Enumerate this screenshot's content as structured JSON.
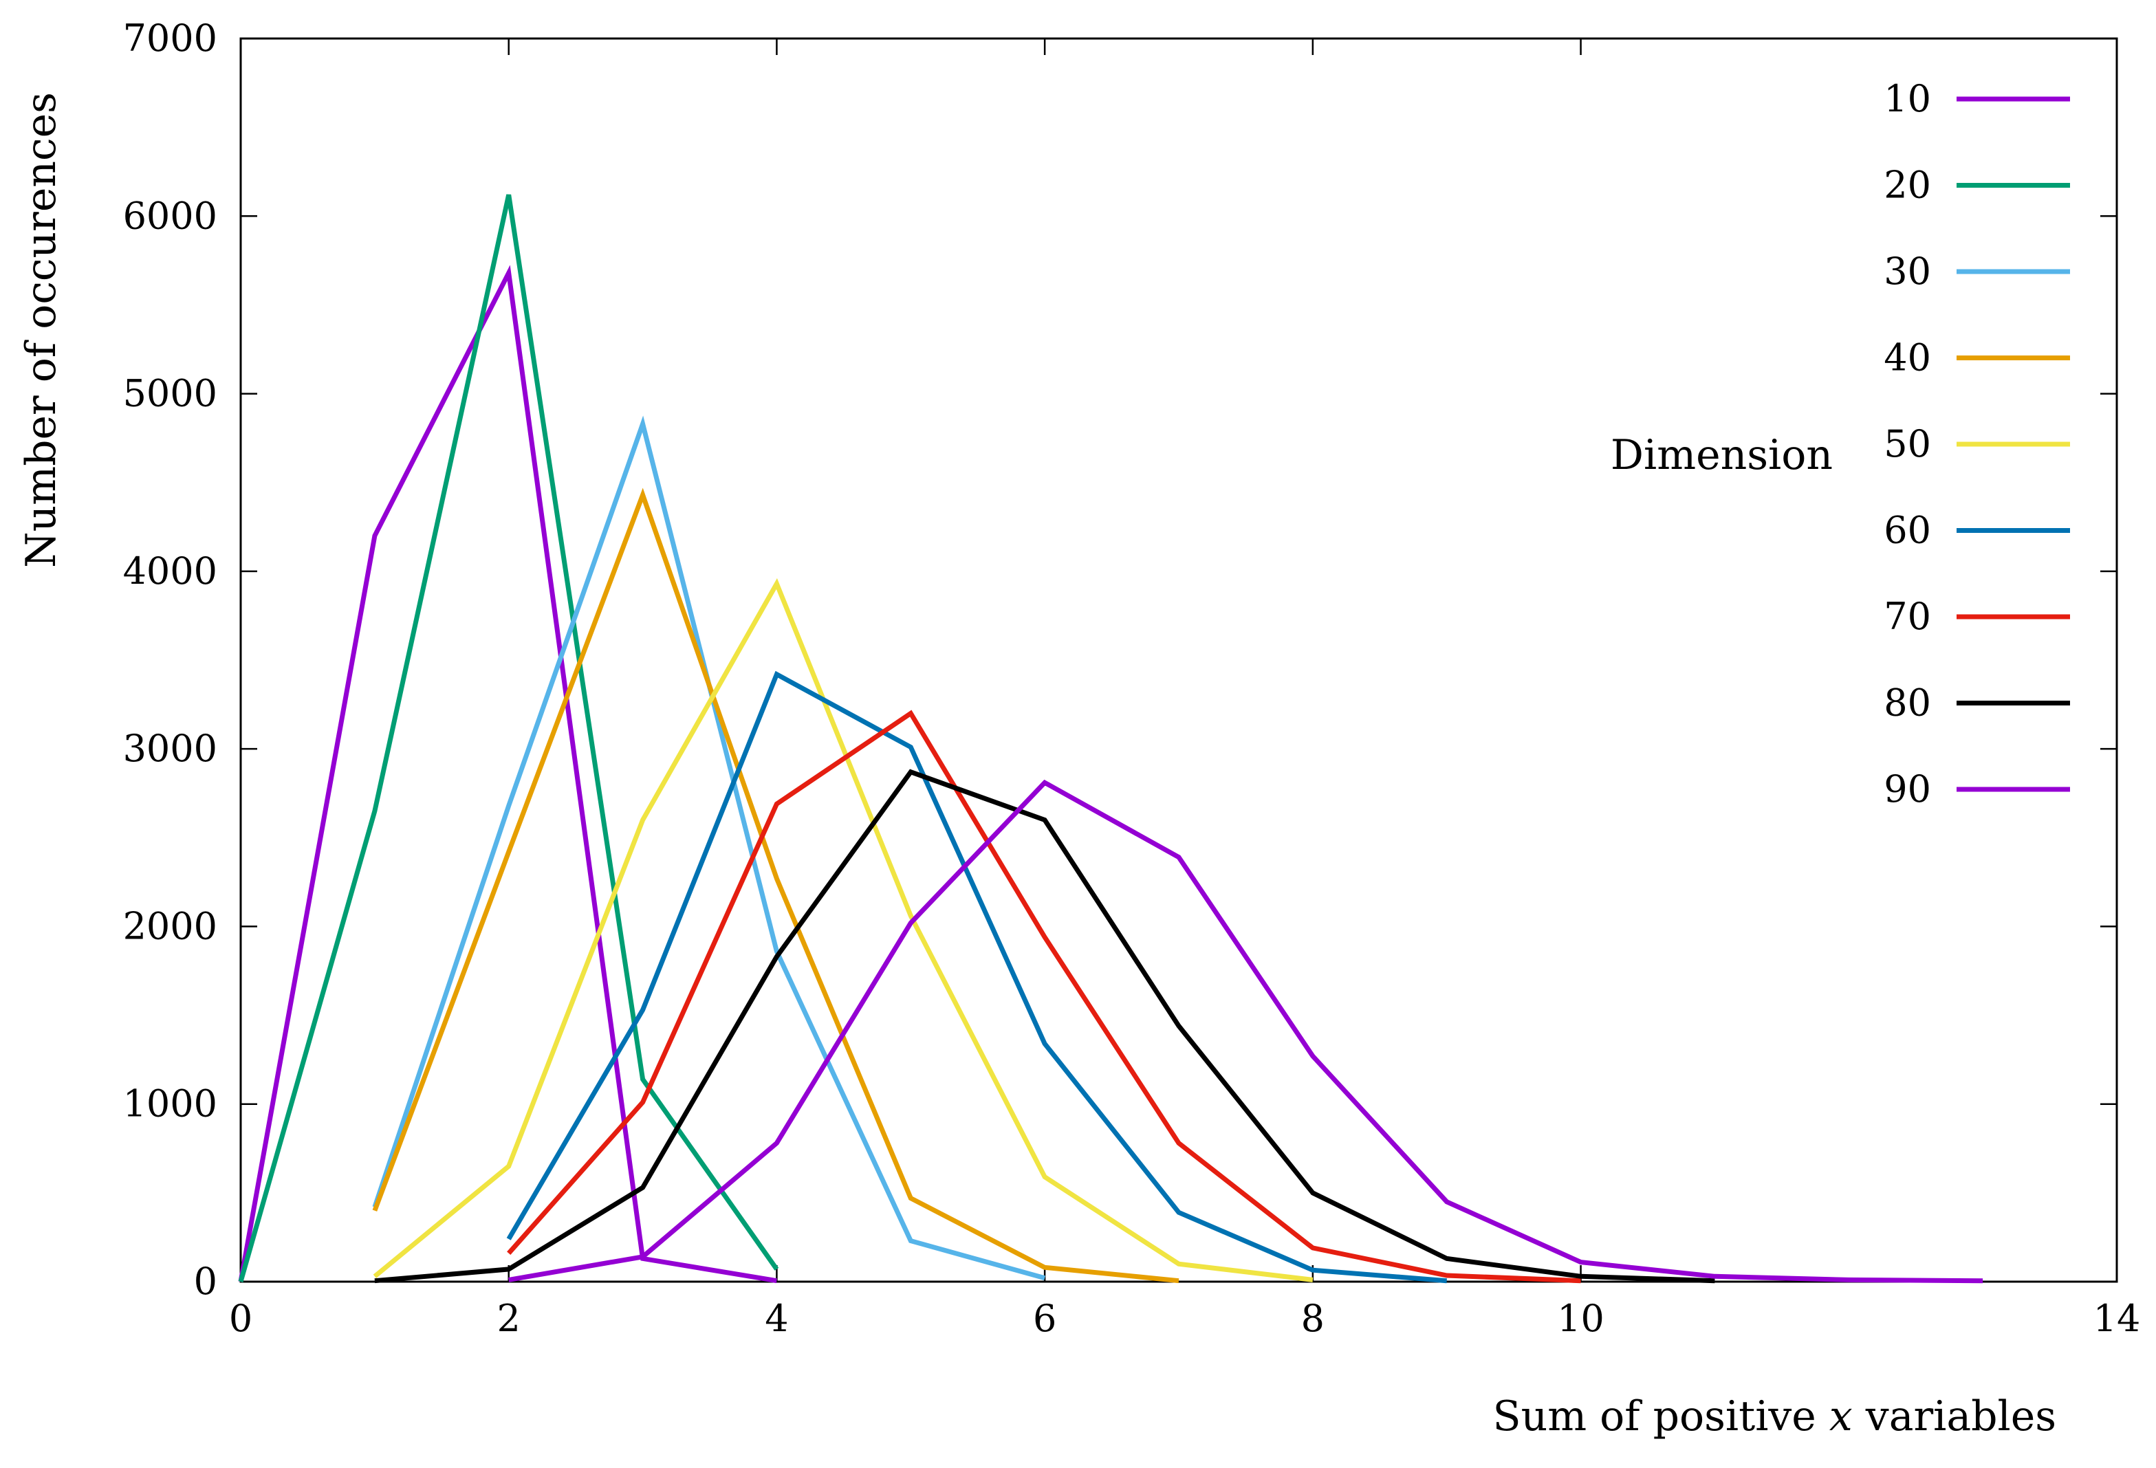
{
  "chart_data": {
    "type": "line",
    "title": "",
    "xlabel_prefix": "Sum of positive ",
    "xlabel_var": "x",
    "xlabel_suffix": " variables",
    "ylabel": "Number of occurences",
    "xlim": [
      0,
      14
    ],
    "ylim": [
      0,
      7000
    ],
    "xticks": [
      0,
      2,
      4,
      6,
      8,
      10,
      14
    ],
    "yticks": [
      0,
      1000,
      2000,
      3000,
      4000,
      5000,
      6000,
      7000
    ],
    "grid": false,
    "legend_title": "Dimension",
    "legend_position": "right",
    "series": [
      {
        "name": "10",
        "color": "#9400d3",
        "x": [
          0,
          1,
          2,
          3,
          4
        ],
        "values": [
          0,
          4200,
          5680,
          130,
          5
        ]
      },
      {
        "name": "20",
        "color": "#009e73",
        "x": [
          0,
          1,
          2,
          3,
          4
        ],
        "values": [
          0,
          2650,
          6120,
          1140,
          70
        ]
      },
      {
        "name": "30",
        "color": "#56b4e9",
        "x": [
          1,
          2,
          3,
          4,
          5,
          6
        ],
        "values": [
          420,
          2680,
          4830,
          1860,
          230,
          20
        ]
      },
      {
        "name": "40",
        "color": "#e69f00",
        "x": [
          1,
          2,
          3,
          4,
          5,
          6,
          7
        ],
        "values": [
          400,
          2420,
          4430,
          2270,
          470,
          80,
          5
        ]
      },
      {
        "name": "50",
        "color": "#f0e442",
        "x": [
          1,
          2,
          3,
          4,
          5,
          6,
          7,
          8
        ],
        "values": [
          30,
          650,
          2600,
          3930,
          2060,
          590,
          100,
          10
        ]
      },
      {
        "name": "60",
        "color": "#0072b2",
        "x": [
          2,
          3,
          4,
          5,
          6,
          7,
          8,
          9
        ],
        "values": [
          240,
          1530,
          3420,
          3010,
          1340,
          390,
          65,
          5
        ]
      },
      {
        "name": "70",
        "color": "#e51e10",
        "x": [
          2,
          3,
          4,
          5,
          6,
          7,
          8,
          9,
          10
        ],
        "values": [
          160,
          1010,
          2690,
          3200,
          1940,
          780,
          190,
          35,
          5
        ]
      },
      {
        "name": "80",
        "color": "#000000",
        "x": [
          1,
          2,
          3,
          4,
          5,
          6,
          7,
          8,
          9,
          10,
          11
        ],
        "values": [
          5,
          70,
          530,
          1830,
          2870,
          2600,
          1440,
          500,
          130,
          30,
          5
        ]
      },
      {
        "name": "90",
        "color": "#9400d3",
        "x": [
          2,
          3,
          4,
          5,
          6,
          7,
          8,
          9,
          10,
          11,
          12,
          13
        ],
        "values": [
          10,
          140,
          780,
          2020,
          2810,
          2390,
          1270,
          450,
          110,
          30,
          10,
          5
        ]
      }
    ]
  }
}
